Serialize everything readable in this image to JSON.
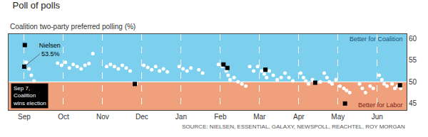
{
  "chart_data": {
    "type": "scatter",
    "title": "Poll of polls",
    "subtitle": "Coalition two-party preferred polling (%)",
    "source": "SOURCE: NIELSEN, ESSENTIAL, GALAXY, NEWSPOLL, REACHTEL, ROY MORGAN",
    "series": [
      {
        "color": "#ffffff",
        "marker": "circle",
        "x": [
          0.05,
          0.12,
          0.18,
          0.25,
          0.85,
          0.95,
          1.05,
          1.15,
          1.25,
          1.35,
          1.45,
          1.55,
          1.65,
          1.75,
          2.1,
          2.2,
          2.3,
          2.4,
          2.5,
          2.6,
          2.7,
          2.85,
          3.05,
          3.15,
          3.25,
          3.35,
          3.45,
          3.55,
          3.65,
          3.95,
          4.05,
          4.15,
          4.25,
          4.45,
          4.55,
          4.95,
          5.05,
          5.15,
          5.2,
          5.25,
          5.35,
          5.45,
          5.55,
          5.65,
          5.75,
          5.85,
          5.95,
          6.05,
          6.12,
          6.18,
          6.25,
          6.35,
          6.45,
          6.55,
          6.65,
          6.75,
          6.85,
          7.05,
          7.12,
          7.18,
          7.25,
          7.35,
          7.45,
          7.55,
          7.65,
          7.72,
          7.78,
          7.85,
          7.95,
          8.05,
          8.15,
          8.22,
          8.3,
          8.55,
          8.62,
          8.7,
          8.82,
          8.9,
          9.05,
          9.12,
          9.18,
          9.25,
          9.38,
          9.45,
          9.52,
          9.6
        ],
        "values": [
          54.5,
          53.0,
          51.5,
          50.2,
          54.3,
          53.8,
          54.5,
          53.2,
          54.0,
          53.5,
          53.0,
          53.8,
          54.2,
          56.5,
          53.5,
          54.0,
          53.5,
          53.0,
          53.8,
          53.2,
          52.5,
          49.5,
          53.8,
          53.3,
          52.8,
          53.5,
          52.5,
          53.0,
          52.3,
          53.5,
          53.0,
          52.5,
          53.2,
          52.8,
          52.0,
          54.0,
          53.5,
          52.5,
          51.5,
          50.5,
          51.0,
          50.0,
          49.5,
          49.0,
          53.5,
          52.5,
          53.5,
          52.5,
          51.8,
          51.0,
          52.5,
          51.5,
          50.5,
          51.0,
          52.0,
          51.0,
          50.2,
          52.0,
          51.0,
          50.2,
          49.5,
          50.5,
          49.8,
          50.0,
          52.0,
          51.0,
          50.0,
          49.5,
          50.5,
          49.0,
          48.5,
          48.0,
          47.5,
          49.5,
          48.5,
          47.5,
          49.0,
          48.5,
          51.5,
          50.5,
          49.5,
          49.0,
          49.5,
          48.5,
          49.0,
          48.5
        ]
      },
      {
        "name": "Nielsen",
        "color": "#000000",
        "marker": "square",
        "x": [
          0.0,
          2.82,
          5.08,
          5.18,
          6.15,
          7.42,
          8.18,
          9.58
        ],
        "values": [
          53.5,
          49.5,
          54.0,
          53.2,
          52.8,
          49.8,
          45.0,
          49.2
        ]
      }
    ],
    "bands": [
      {
        "y0": 50,
        "y1": 61.0,
        "color": "#7dcfee",
        "label": "Better for Coalition"
      },
      {
        "y0": 43.5,
        "y1": 50,
        "color": "#f0a07a",
        "label": "Better for Labor"
      }
    ],
    "annotations": [
      {
        "text": "53.5%",
        "x": 0.0,
        "y": 53.5
      },
      {
        "text": "Sep 7,\nCoalition\nwins election"
      }
    ],
    "xlim": [
      -0.4,
      9.75
    ],
    "xticks": [
      {
        "value": 0,
        "label": "Sep"
      },
      {
        "value": 1,
        "label": "Oct"
      },
      {
        "value": 2,
        "label": "Nov"
      },
      {
        "value": 3,
        "label": "Dec"
      },
      {
        "value": 4,
        "label": "Jan"
      },
      {
        "value": 5,
        "label": "Feb"
      },
      {
        "value": 6,
        "label": "Mar"
      },
      {
        "value": 7,
        "label": "Apr"
      },
      {
        "value": 8,
        "label": "May"
      },
      {
        "value": 9,
        "label": "Jun"
      }
    ],
    "ylim": [
      43.5,
      61.0
    ],
    "yticks": [
      45,
      50,
      55,
      60
    ],
    "grid": "x",
    "legend": "top left"
  }
}
